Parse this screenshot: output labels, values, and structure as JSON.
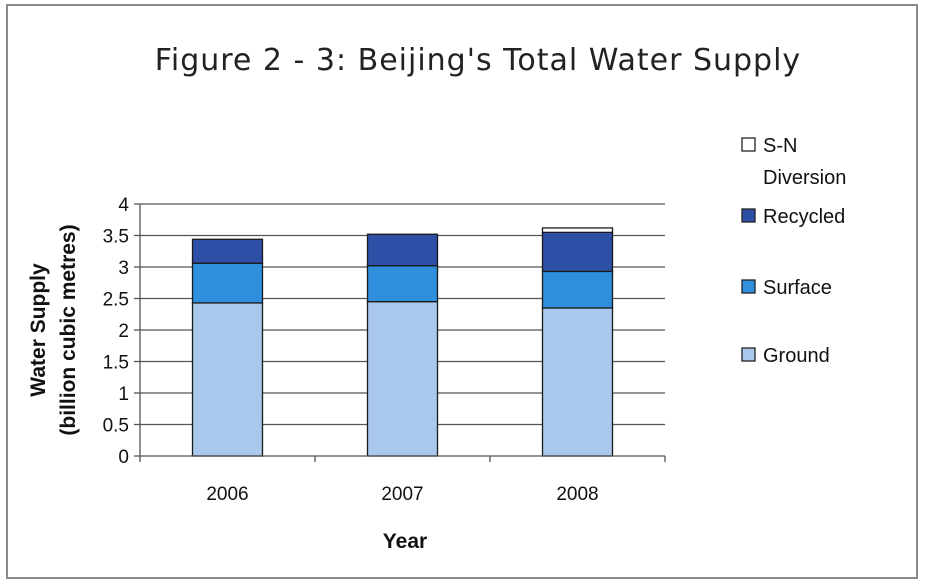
{
  "chart_data": {
    "type": "bar",
    "stacked": true,
    "title": "Figure 2 - 3: Beijing's Total Water Supply",
    "xlabel": "Year",
    "ylabel": "Water Supply",
    "ylabel_line2": "(billion cubic metres)",
    "categories": [
      "2006",
      "2007",
      "2008"
    ],
    "ylim": [
      0,
      4
    ],
    "yticks": [
      "0",
      "0.5",
      "1",
      "1.5",
      "2",
      "2.5",
      "3",
      "3.5",
      "4"
    ],
    "ytick_values": [
      0,
      0.5,
      1,
      1.5,
      2,
      2.5,
      3,
      3.5,
      4
    ],
    "grid": true,
    "legend_position": "right",
    "series": [
      {
        "name": "Ground",
        "values": [
          2.43,
          2.45,
          2.35
        ],
        "color": "#a9c8ec"
      },
      {
        "name": "Surface",
        "values": [
          0.63,
          0.57,
          0.58
        ],
        "color": "#2f8fdc"
      },
      {
        "name": "Recycled",
        "values": [
          0.38,
          0.5,
          0.62
        ],
        "color": "#2d4fa6"
      },
      {
        "name": "S-N Diversion",
        "values": [
          0,
          0,
          0.07
        ],
        "color": "#ffffff"
      }
    ],
    "legend": [
      {
        "line1": "S-N",
        "line2": "Diversion",
        "color": "#ffffff"
      },
      {
        "line1": "Recycled",
        "line2": "",
        "color": "#2d4fa6"
      },
      {
        "line1": "Surface",
        "line2": "",
        "color": "#2f8fdc"
      },
      {
        "line1": "Ground",
        "line2": "",
        "color": "#a9c8ec"
      }
    ]
  }
}
